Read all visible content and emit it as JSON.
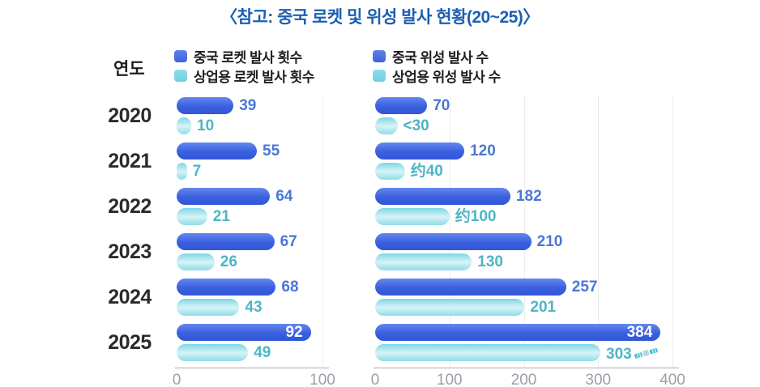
{
  "title": "〈참고: 중국 로켓 및 위성 발사 현황(20~25)〉",
  "year_axis_label": "연도",
  "colors": {
    "title_text": "#1c5fb2",
    "primary_bar": "#3c63de",
    "secondary_bar": "#8edde9",
    "primary_value_text": "#4a77d6",
    "secondary_value_text": "#4db5c5",
    "inside_value_text": "#ffffff",
    "year_text": "#2b2b2b",
    "axis_text": "#9aa0a6"
  },
  "chart_data": [
    {
      "type": "bar",
      "orientation": "horizontal",
      "categories": [
        "2020",
        "2021",
        "2022",
        "2023",
        "2024",
        "2025"
      ],
      "series": [
        {
          "name": "중국 로켓 발사 횟수",
          "values": [
            39,
            55,
            64,
            67,
            68,
            92
          ],
          "labels": [
            "39",
            "55",
            "64",
            "67",
            "68",
            "92"
          ]
        },
        {
          "name": "상업용 로켓 발사 횟수",
          "values": [
            10,
            7,
            21,
            26,
            43,
            49
          ],
          "labels": [
            "10",
            "7",
            "21",
            "26",
            "43",
            "49"
          ]
        }
      ],
      "xlim": [
        0,
        100
      ],
      "ticks": [
        0,
        100
      ],
      "grid": true,
      "legend_position": "top"
    },
    {
      "type": "bar",
      "orientation": "horizontal",
      "categories": [
        "2020",
        "2021",
        "2022",
        "2023",
        "2024",
        "2025"
      ],
      "series": [
        {
          "name": "중국 위성 발사 수",
          "values": [
            70,
            120,
            182,
            210,
            257,
            384
          ],
          "labels": [
            "70",
            "120",
            "182",
            "210",
            "257",
            "384"
          ]
        },
        {
          "name": "상업용 위성 발사 수",
          "values": [
            30,
            40,
            100,
            130,
            201,
            303
          ],
          "labels": [
            "<30",
            "约40",
            "约100",
            "130",
            "201",
            "303"
          ]
        }
      ],
      "xlim": [
        0,
        400
      ],
      "ticks": [
        0,
        100,
        200,
        300,
        400
      ],
      "grid": true,
      "legend_position": "top",
      "annotations": [
        {
          "icon": "satellite-icon",
          "row_index": 5,
          "series_index": 1,
          "position": "after-label"
        }
      ]
    }
  ]
}
